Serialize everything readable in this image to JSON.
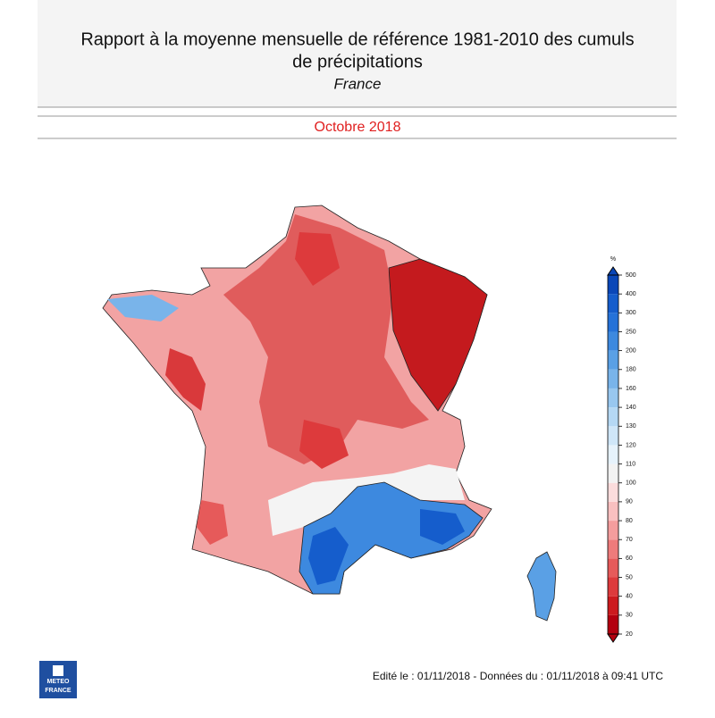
{
  "header": {
    "title": [
      "Rapport à la moyenne mensuelle de référence 1981-2010 des cumuls",
      "de précipitations"
    ],
    "region": "France",
    "period": "Octobre 2018"
  },
  "legend": {
    "unit": "%",
    "ticks": [
      20,
      30,
      40,
      50,
      60,
      70,
      80,
      90,
      100,
      110,
      120,
      130,
      140,
      160,
      180,
      200,
      250,
      300,
      400,
      500
    ],
    "colors": [
      "#b3000f",
      "#cc1a1e",
      "#dd3a3c",
      "#e65a5a",
      "#ee7b7b",
      "#f49d9d",
      "#f9c0c0",
      "#fbdcdc",
      "#f2f2f2",
      "#e6f2fb",
      "#cfe6f8",
      "#b5d8f4",
      "#98c7ef",
      "#79b4ea",
      "#5aa0e5",
      "#3d89df",
      "#2572d8",
      "#155dcc",
      "#0a47b8"
    ]
  },
  "footer": {
    "edited": "Edité le : 01/11/2018 - Données du : 01/11/2018 à 09:41 UTC",
    "logo": [
      "METEO",
      "FRANCE"
    ]
  }
}
